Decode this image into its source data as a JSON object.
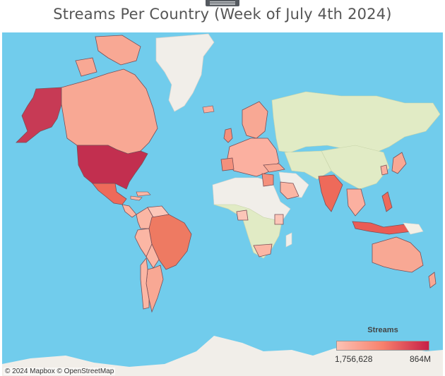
{
  "page": {
    "title": "Streams Per Country (Week of July 4th 2024)",
    "attribution": "© 2024 Mapbox © OpenStreetMap"
  },
  "colors": {
    "ocean": "#71ccec",
    "land_no_data": "#f1eee9",
    "land_green": "#e1ebc5",
    "low": "#fcc2b4",
    "mid": "#f7806c",
    "high": "#c71f47",
    "border": "#7a4e56"
  },
  "legend": {
    "title": "Streams",
    "min_label": "1,756,628",
    "max_label": "864M",
    "min_value": 1756628,
    "max_value": 864000000
  },
  "countries": [
    {
      "name": "United States",
      "level": 1.0
    },
    {
      "name": "Alaska",
      "level": 0.95
    },
    {
      "name": "Canada",
      "level": 0.15
    },
    {
      "name": "Mexico",
      "level": 0.7
    },
    {
      "name": "Greenland",
      "level": null
    },
    {
      "name": "Brazil",
      "level": 0.55
    },
    {
      "name": "Colombia",
      "level": 0.2
    },
    {
      "name": "Peru",
      "level": 0.15
    },
    {
      "name": "Argentina",
      "level": 0.3
    },
    {
      "name": "Chile",
      "level": 0.2
    },
    {
      "name": "India",
      "level": 0.6
    },
    {
      "name": "Indonesia",
      "level": 0.65
    },
    {
      "name": "Philippines",
      "level": 0.5
    },
    {
      "name": "Australia",
      "level": 0.3
    },
    {
      "name": "South Africa",
      "level": 0.1
    },
    {
      "name": "Japan",
      "level": 0.25
    },
    {
      "name": "Turkey",
      "level": 0.2
    },
    {
      "name": "United Kingdom",
      "level": 0.35
    }
  ]
}
